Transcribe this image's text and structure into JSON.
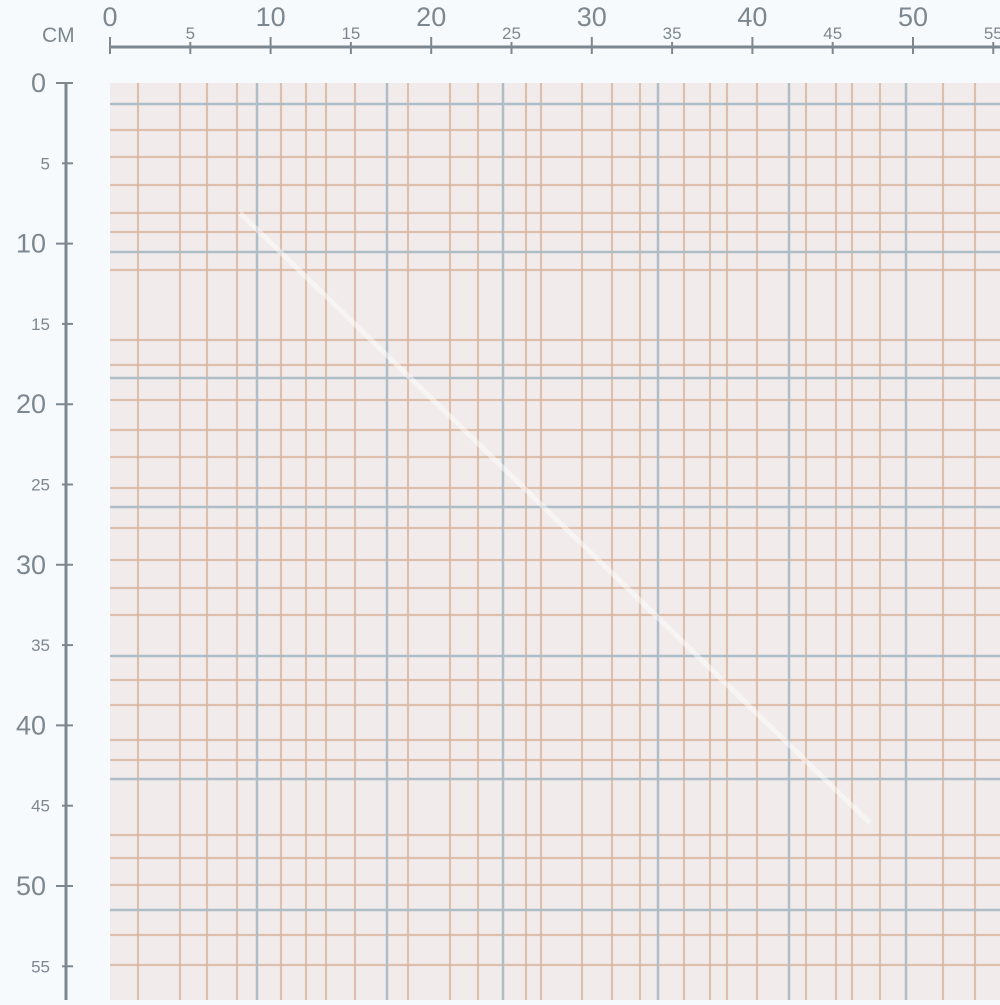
{
  "ruler": {
    "unit": "CM",
    "horizontal_ticks": [
      "0",
      "5",
      "10",
      "15",
      "20",
      "25",
      "30",
      "35",
      "40",
      "45",
      "50",
      "55"
    ],
    "vertical_ticks": [
      "0",
      "5",
      "10",
      "15",
      "20",
      "25",
      "30",
      "35",
      "40",
      "45",
      "50",
      "55"
    ],
    "color": "#7d8790"
  },
  "fabric": {
    "pattern": "plaid grid",
    "background_color": "#f1eceb",
    "line_colors": {
      "tan": "#d9b49e",
      "blue": "#aebdc6"
    }
  }
}
